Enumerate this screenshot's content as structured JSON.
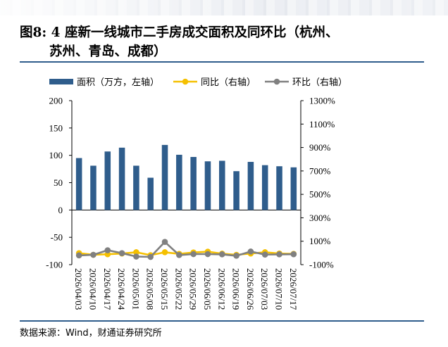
{
  "header": {
    "title_line1": "图8: 4 座新一线城市二手房成交面积及同环比（杭州、",
    "title_line2": "苏州、青岛、成都）"
  },
  "footer": {
    "source": "数据来源：Wind，财通证券研究所"
  },
  "colors": {
    "bar": "#2f5d8c",
    "yoy": "#f5c000",
    "mom": "#808080",
    "rule": "#2f5d8c"
  },
  "chart_data": {
    "type": "bar",
    "categories": [
      "2026/04/03",
      "2026/04/10",
      "2026/04/17",
      "2026/04/24",
      "2026/05/01",
      "2026/05/08",
      "2026/05/15",
      "2026/05/22",
      "2026/05/29",
      "2026/06/05",
      "2026/06/12",
      "2026/06/19",
      "2026/06/26",
      "2026/07/03",
      "2026/07/10",
      "2026/07/17"
    ],
    "series": [
      {
        "name": "面积（万方，左轴）",
        "type": "bar",
        "axis": "left",
        "values": [
          95,
          81,
          107,
          114,
          81,
          59,
          119,
          101,
          97,
          89,
          90,
          71,
          88,
          82,
          80,
          78
        ]
      },
      {
        "name": "同比（右轴）",
        "type": "line",
        "axis": "right",
        "values": [
          -2,
          -16,
          -11,
          -5,
          6,
          -19,
          6,
          -8,
          4,
          11,
          -6,
          -16,
          -5,
          6,
          -5,
          -8
        ]
      },
      {
        "name": "环比（右轴）",
        "type": "line",
        "axis": "right",
        "values": [
          -21,
          -16,
          23,
          -2,
          -31,
          -34,
          94,
          -18,
          -10,
          -10,
          -12,
          -24,
          12,
          -14,
          -12,
          -11
        ]
      }
    ],
    "left_axis": {
      "ticks": [
        200,
        150,
        100,
        50,
        0,
        -50,
        -100
      ],
      "ylim": [
        -100,
        200
      ]
    },
    "right_axis": {
      "tick_labels": [
        "1300%",
        "1100%",
        "900%",
        "700%",
        "500%",
        "300%",
        "100%",
        "-100%"
      ],
      "ylim": [
        -100,
        1300
      ]
    },
    "legend": [
      "面积（万方，左轴）",
      "同比（右轴）",
      "环比（右轴）"
    ],
    "legend_position": "top"
  }
}
